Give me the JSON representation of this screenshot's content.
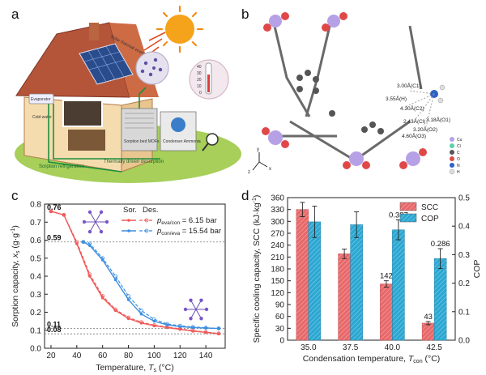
{
  "panels": {
    "a": {
      "letter": "a",
      "labels": {
        "solar_energy": "Solar thermal energy",
        "evaporator": "Evaporator",
        "cold_water": "Cold water",
        "sorption_bed": "Sorption bed MOFs",
        "condenser": "Condenser Ammonia",
        "sorption_refrigeration": "Sorption refrigeration",
        "thermal_desorption": "Thermally driven desorption"
      },
      "thermometer_ticks": [
        "40",
        "30",
        "20",
        "10",
        "0"
      ]
    },
    "b": {
      "letter": "b",
      "distance_labels": [
        "3.00Å(C1)",
        "3.55Å(H)",
        "4.30Å(C2)",
        "3.18Å(O1)",
        "2.43Å(Cl)",
        "3.20Å(O2)",
        "4.60Å(O3)"
      ],
      "legend": [
        "Cu",
        "Cl",
        "C",
        "O",
        "N",
        "H"
      ],
      "axes": [
        "z",
        "x",
        "y"
      ]
    },
    "c": {
      "letter": "c"
    },
    "d": {
      "letter": "d"
    }
  },
  "chart_data": [
    {
      "type": "line",
      "panel": "c",
      "xlabel": "Temperature, T_s (°C)",
      "ylabel": "Sorption capacity, x_s (g·g⁻¹)",
      "xlim": [
        15,
        155
      ],
      "ylim": [
        0.0,
        0.8
      ],
      "xticks": [
        20,
        40,
        60,
        80,
        100,
        120,
        140
      ],
      "yticks": [
        0.0,
        0.1,
        0.2,
        0.3,
        0.4,
        0.5,
        0.6,
        0.7,
        0.8
      ],
      "legend_header": [
        "Sor.",
        "Des."
      ],
      "series": [
        {
          "name": "p_eva/con = 6.15 bar",
          "color": "#f05a5a",
          "x": [
            20,
            30,
            40,
            50,
            60,
            70,
            80,
            90,
            100,
            110,
            120,
            130,
            140,
            150
          ],
          "sorption": [
            0.76,
            0.74,
            0.58,
            0.4,
            0.28,
            0.21,
            0.165,
            0.14,
            0.125,
            0.115,
            0.105,
            0.095,
            0.088,
            0.08
          ],
          "desorption": [
            0.76,
            0.74,
            0.59,
            0.41,
            0.29,
            0.215,
            0.17,
            0.145,
            0.128,
            0.118,
            0.108,
            0.098,
            0.09,
            0.082
          ]
        },
        {
          "name": "p_con/eva = 15.54 bar",
          "color": "#3d8fe0",
          "x": [
            45,
            50,
            60,
            70,
            80,
            90,
            100,
            110,
            120,
            130,
            140,
            150
          ],
          "sorption": [
            0.59,
            0.57,
            0.49,
            0.38,
            0.27,
            0.19,
            0.15,
            0.13,
            0.12,
            0.115,
            0.112,
            0.11
          ],
          "desorption": [
            0.59,
            0.58,
            0.5,
            0.4,
            0.29,
            0.21,
            0.16,
            0.135,
            0.125,
            0.118,
            0.114,
            0.11
          ]
        }
      ],
      "annotations": [
        "0.76",
        "0.59",
        "0.11",
        "0.08"
      ]
    },
    {
      "type": "bar",
      "panel": "d",
      "xlabel": "Condensation temperature, T_con (°C)",
      "ylabel": "Specific cooling capacity, SCC (kJ·kg⁻¹)",
      "ylabel_right": "COP",
      "categories": [
        "35.0",
        "37.5",
        "40.0",
        "42.5"
      ],
      "ylim": [
        0,
        360
      ],
      "yticks": [
        0,
        30,
        60,
        90,
        120,
        150,
        180,
        210,
        240,
        270,
        300,
        330,
        360
      ],
      "ylim_right": [
        0.0,
        0.5
      ],
      "yticks_right": [
        "0.0",
        "0.1",
        "0.2",
        "0.3",
        "0.4",
        "0.5"
      ],
      "series": [
        {
          "name": "SCC",
          "color": "#e8686a",
          "values": [
            330,
            218,
            142,
            43
          ],
          "errors": [
            18,
            12,
            8,
            4
          ],
          "labels": [
            "",
            "",
            "142",
            "43"
          ]
        },
        {
          "name": "COP",
          "color": "#2aa7d2",
          "values": [
            0.415,
            0.405,
            0.387,
            0.286
          ],
          "errors": [
            0.055,
            0.045,
            0.035,
            0.035
          ],
          "labels": [
            "",
            "",
            "0.387",
            "0.286"
          ]
        }
      ]
    }
  ]
}
